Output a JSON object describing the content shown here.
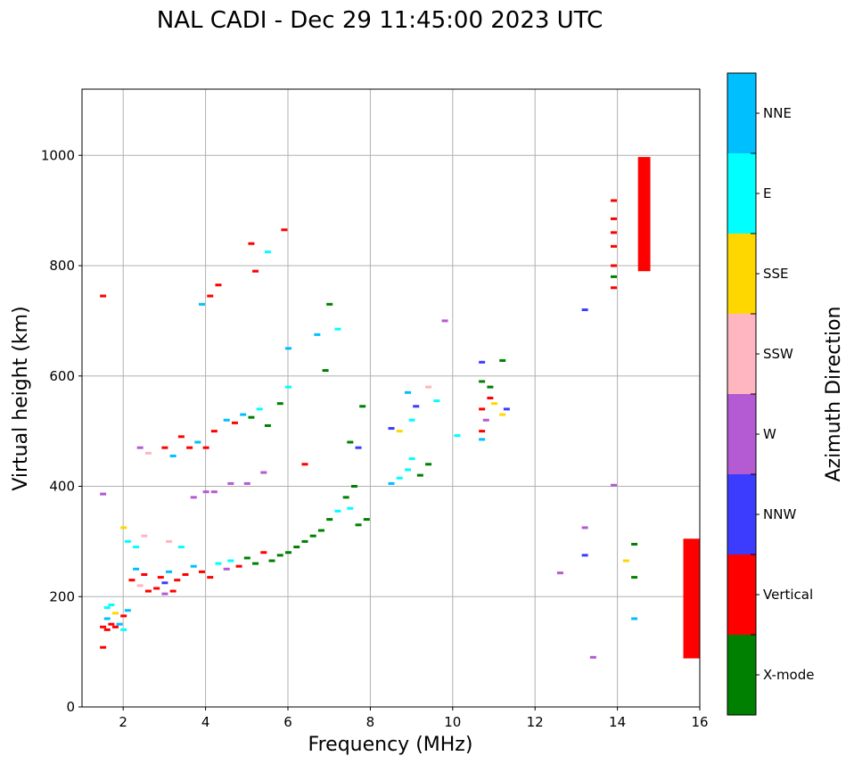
{
  "chart_data": {
    "type": "scatter",
    "title": "NAL CADI - Dec 29 11:45:00 2023 UTC",
    "xlabel": "Frequency (MHz)",
    "ylabel": "Virtual height (km)",
    "xlim": [
      1,
      16
    ],
    "ylim": [
      0,
      1120
    ],
    "xticks": [
      2,
      4,
      6,
      8,
      10,
      12,
      14,
      16
    ],
    "yticks": [
      0,
      200,
      400,
      600,
      800,
      1000
    ],
    "grid": true,
    "colorbar": {
      "label": "Azimuth Direction",
      "categories": [
        {
          "name": "X-mode",
          "color": "#008000"
        },
        {
          "name": "Vertical",
          "color": "#ff0000"
        },
        {
          "name": "NNW",
          "color": "#3c3cff"
        },
        {
          "name": "W",
          "color": "#b45ad2"
        },
        {
          "name": "SSW",
          "color": "#ffb6c1"
        },
        {
          "name": "SSE",
          "color": "#ffd700"
        },
        {
          "name": "E",
          "color": "#00ffff"
        },
        {
          "name": "NNE",
          "color": "#00bfff"
        }
      ]
    },
    "points": [
      [
        1.5,
        745,
        "Vertical"
      ],
      [
        1.5,
        386,
        "W"
      ],
      [
        1.5,
        108,
        "Vertical"
      ],
      [
        1.5,
        145,
        "Vertical"
      ],
      [
        1.6,
        140,
        "Vertical"
      ],
      [
        1.6,
        160,
        "NNE"
      ],
      [
        1.6,
        180,
        "E"
      ],
      [
        1.7,
        150,
        "Vertical"
      ],
      [
        1.7,
        185,
        "E"
      ],
      [
        1.8,
        145,
        "Vertical"
      ],
      [
        1.8,
        170,
        "SSE"
      ],
      [
        1.9,
        150,
        "NNE"
      ],
      [
        2.0,
        140,
        "E"
      ],
      [
        2.0,
        165,
        "Vertical"
      ],
      [
        2.1,
        175,
        "NNE"
      ],
      [
        2.0,
        325,
        "SSE"
      ],
      [
        2.1,
        300,
        "E"
      ],
      [
        2.2,
        230,
        "Vertical"
      ],
      [
        2.3,
        250,
        "NNE"
      ],
      [
        2.4,
        220,
        "SSW"
      ],
      [
        2.5,
        240,
        "Vertical"
      ],
      [
        2.6,
        210,
        "Vertical"
      ],
      [
        2.3,
        290,
        "E"
      ],
      [
        2.5,
        310,
        "SSW"
      ],
      [
        2.4,
        470,
        "W"
      ],
      [
        2.6,
        460,
        "SSW"
      ],
      [
        2.8,
        215,
        "Vertical"
      ],
      [
        2.9,
        235,
        "Vertical"
      ],
      [
        3.0,
        225,
        "NNW"
      ],
      [
        3.0,
        205,
        "W"
      ],
      [
        3.1,
        245,
        "NNE"
      ],
      [
        3.2,
        210,
        "Vertical"
      ],
      [
        3.3,
        230,
        "Vertical"
      ],
      [
        3.1,
        300,
        "SSW"
      ],
      [
        3.4,
        290,
        "E"
      ],
      [
        3.0,
        470,
        "Vertical"
      ],
      [
        3.2,
        455,
        "NNE"
      ],
      [
        3.4,
        490,
        "Vertical"
      ],
      [
        3.6,
        470,
        "Vertical"
      ],
      [
        3.8,
        480,
        "NNE"
      ],
      [
        4.0,
        470,
        "Vertical"
      ],
      [
        4.2,
        500,
        "Vertical"
      ],
      [
        3.5,
        240,
        "Vertical"
      ],
      [
        3.7,
        255,
        "NNE"
      ],
      [
        3.9,
        245,
        "Vertical"
      ],
      [
        4.1,
        235,
        "Vertical"
      ],
      [
        4.3,
        260,
        "E"
      ],
      [
        4.5,
        250,
        "W"
      ],
      [
        3.7,
        380,
        "W"
      ],
      [
        4.0,
        390,
        "W"
      ],
      [
        4.2,
        390,
        "W"
      ],
      [
        4.6,
        405,
        "W"
      ],
      [
        5.0,
        405,
        "W"
      ],
      [
        5.4,
        425,
        "W"
      ],
      [
        3.9,
        730,
        "NNE"
      ],
      [
        4.1,
        745,
        "Vertical"
      ],
      [
        4.3,
        765,
        "Vertical"
      ],
      [
        4.6,
        265,
        "E"
      ],
      [
        4.8,
        255,
        "Vertical"
      ],
      [
        5.0,
        270,
        "X-mode"
      ],
      [
        5.2,
        260,
        "X-mode"
      ],
      [
        5.4,
        280,
        "Vertical"
      ],
      [
        5.6,
        265,
        "X-mode"
      ],
      [
        5.8,
        275,
        "X-mode"
      ],
      [
        4.5,
        520,
        "NNE"
      ],
      [
        4.7,
        515,
        "Vertical"
      ],
      [
        4.9,
        530,
        "NNE"
      ],
      [
        5.1,
        525,
        "X-mode"
      ],
      [
        5.3,
        540,
        "E"
      ],
      [
        5.5,
        510,
        "X-mode"
      ],
      [
        5.8,
        550,
        "X-mode"
      ],
      [
        6.0,
        580,
        "E"
      ],
      [
        5.2,
        790,
        "Vertical"
      ],
      [
        5.1,
        840,
        "Vertical"
      ],
      [
        5.5,
        825,
        "E"
      ],
      [
        5.9,
        865,
        "Vertical"
      ],
      [
        6.0,
        650,
        "NNE"
      ],
      [
        6.0,
        280,
        "X-mode"
      ],
      [
        6.2,
        290,
        "X-mode"
      ],
      [
        6.4,
        300,
        "X-mode"
      ],
      [
        6.6,
        310,
        "X-mode"
      ],
      [
        6.8,
        320,
        "X-mode"
      ],
      [
        7.0,
        340,
        "X-mode"
      ],
      [
        7.2,
        355,
        "E"
      ],
      [
        7.4,
        380,
        "X-mode"
      ],
      [
        7.5,
        360,
        "E"
      ],
      [
        7.6,
        400,
        "X-mode"
      ],
      [
        7.7,
        330,
        "X-mode"
      ],
      [
        7.9,
        340,
        "X-mode"
      ],
      [
        6.4,
        440,
        "Vertical"
      ],
      [
        6.7,
        675,
        "NNE"
      ],
      [
        6.9,
        610,
        "X-mode"
      ],
      [
        7.0,
        730,
        "X-mode"
      ],
      [
        7.2,
        685,
        "E"
      ],
      [
        7.5,
        480,
        "X-mode"
      ],
      [
        7.7,
        470,
        "NNW"
      ],
      [
        7.8,
        545,
        "X-mode"
      ],
      [
        8.5,
        405,
        "NNE"
      ],
      [
        8.7,
        415,
        "E"
      ],
      [
        8.9,
        430,
        "E"
      ],
      [
        9.0,
        450,
        "E"
      ],
      [
        9.2,
        420,
        "X-mode"
      ],
      [
        9.4,
        440,
        "X-mode"
      ],
      [
        8.5,
        505,
        "NNW"
      ],
      [
        8.7,
        500,
        "SSE"
      ],
      [
        9.0,
        520,
        "E"
      ],
      [
        8.9,
        570,
        "NNE"
      ],
      [
        9.1,
        545,
        "NNW"
      ],
      [
        9.4,
        580,
        "SSW"
      ],
      [
        9.6,
        555,
        "E"
      ],
      [
        9.8,
        700,
        "W"
      ],
      [
        10.1,
        492,
        "E"
      ],
      [
        10.7,
        500,
        "Vertical"
      ],
      [
        10.8,
        520,
        "W"
      ],
      [
        10.7,
        540,
        "Vertical"
      ],
      [
        10.9,
        560,
        "Vertical"
      ],
      [
        11.0,
        550,
        "SSE"
      ],
      [
        11.2,
        530,
        "SSE"
      ],
      [
        11.3,
        540,
        "NNW"
      ],
      [
        10.9,
        580,
        "X-mode"
      ],
      [
        10.7,
        625,
        "NNW"
      ],
      [
        11.2,
        628,
        "X-mode"
      ],
      [
        10.7,
        590,
        "X-mode"
      ],
      [
        10.7,
        485,
        "NNE"
      ],
      [
        12.6,
        243,
        "W"
      ],
      [
        13.2,
        275,
        "NNW"
      ],
      [
        13.2,
        325,
        "W"
      ],
      [
        13.2,
        720,
        "NNW"
      ],
      [
        13.4,
        90,
        "W"
      ],
      [
        13.9,
        760,
        "Vertical"
      ],
      [
        13.9,
        780,
        "X-mode"
      ],
      [
        13.9,
        800,
        "Vertical"
      ],
      [
        13.9,
        835,
        "Vertical"
      ],
      [
        13.9,
        860,
        "Vertical"
      ],
      [
        13.9,
        885,
        "Vertical"
      ],
      [
        13.9,
        918,
        "Vertical"
      ],
      [
        13.9,
        402,
        "W"
      ],
      [
        14.2,
        265,
        "SSE"
      ],
      [
        14.4,
        160,
        "NNE"
      ],
      [
        14.4,
        235,
        "X-mode"
      ],
      [
        14.4,
        295,
        "X-mode"
      ]
    ],
    "bars": [
      {
        "f0": 14.5,
        "f1": 14.8,
        "h0": 790,
        "h1": 997,
        "azimuth": "Vertical"
      },
      {
        "f0": 15.6,
        "f1": 16.0,
        "h0": 88,
        "h1": 305,
        "azimuth": "Vertical"
      }
    ]
  }
}
